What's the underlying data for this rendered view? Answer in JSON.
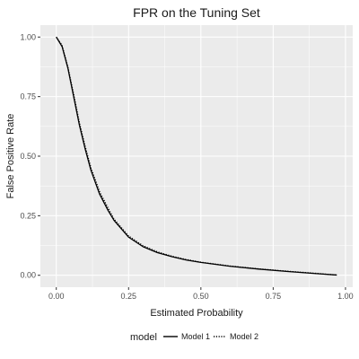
{
  "chart_data": {
    "type": "line",
    "title": "FPR on the Tuning Set",
    "xlabel": "Estimated Probability",
    "ylabel": "False Positive Rate",
    "xlim": [
      -0.055,
      1.025
    ],
    "ylim": [
      -0.05,
      1.05
    ],
    "xticks": [
      0.0,
      0.25,
      0.5,
      0.75,
      1.0
    ],
    "xtick_labels": [
      "0.00",
      "0.25",
      "0.50",
      "0.75",
      "1.00"
    ],
    "yticks": [
      0.0,
      0.25,
      0.5,
      0.75,
      1.0
    ],
    "ytick_labels": [
      "0.00",
      "0.25",
      "0.50",
      "0.75",
      "1.00"
    ],
    "grid": true,
    "legend": {
      "title": "model",
      "position": "bottom"
    },
    "series": [
      {
        "name": "Model 1",
        "line_style": "solid",
        "color": "#000000",
        "x": [
          0.0,
          0.02,
          0.04,
          0.06,
          0.08,
          0.1,
          0.12,
          0.15,
          0.18,
          0.2,
          0.25,
          0.3,
          0.35,
          0.4,
          0.45,
          0.5,
          0.6,
          0.7,
          0.8,
          0.9,
          0.97
        ],
        "y": [
          1.0,
          0.96,
          0.87,
          0.75,
          0.63,
          0.53,
          0.44,
          0.34,
          0.27,
          0.23,
          0.16,
          0.12,
          0.095,
          0.078,
          0.064,
          0.054,
          0.038,
          0.026,
          0.016,
          0.007,
          0.001
        ]
      },
      {
        "name": "Model 2",
        "line_style": "dotted",
        "color": "#000000",
        "x": [
          0.0,
          0.02,
          0.04,
          0.06,
          0.08,
          0.1,
          0.12,
          0.15,
          0.18,
          0.2,
          0.25,
          0.3,
          0.35,
          0.4,
          0.45,
          0.5,
          0.6,
          0.7,
          0.8,
          0.9,
          0.97
        ],
        "y": [
          1.0,
          0.965,
          0.875,
          0.76,
          0.64,
          0.54,
          0.45,
          0.35,
          0.28,
          0.235,
          0.165,
          0.124,
          0.098,
          0.08,
          0.066,
          0.055,
          0.039,
          0.027,
          0.017,
          0.008,
          0.001
        ]
      }
    ]
  },
  "colors": {
    "panel_background": "#ebebeb",
    "grid_major": "#ffffff",
    "page_background": "#ffffff"
  }
}
